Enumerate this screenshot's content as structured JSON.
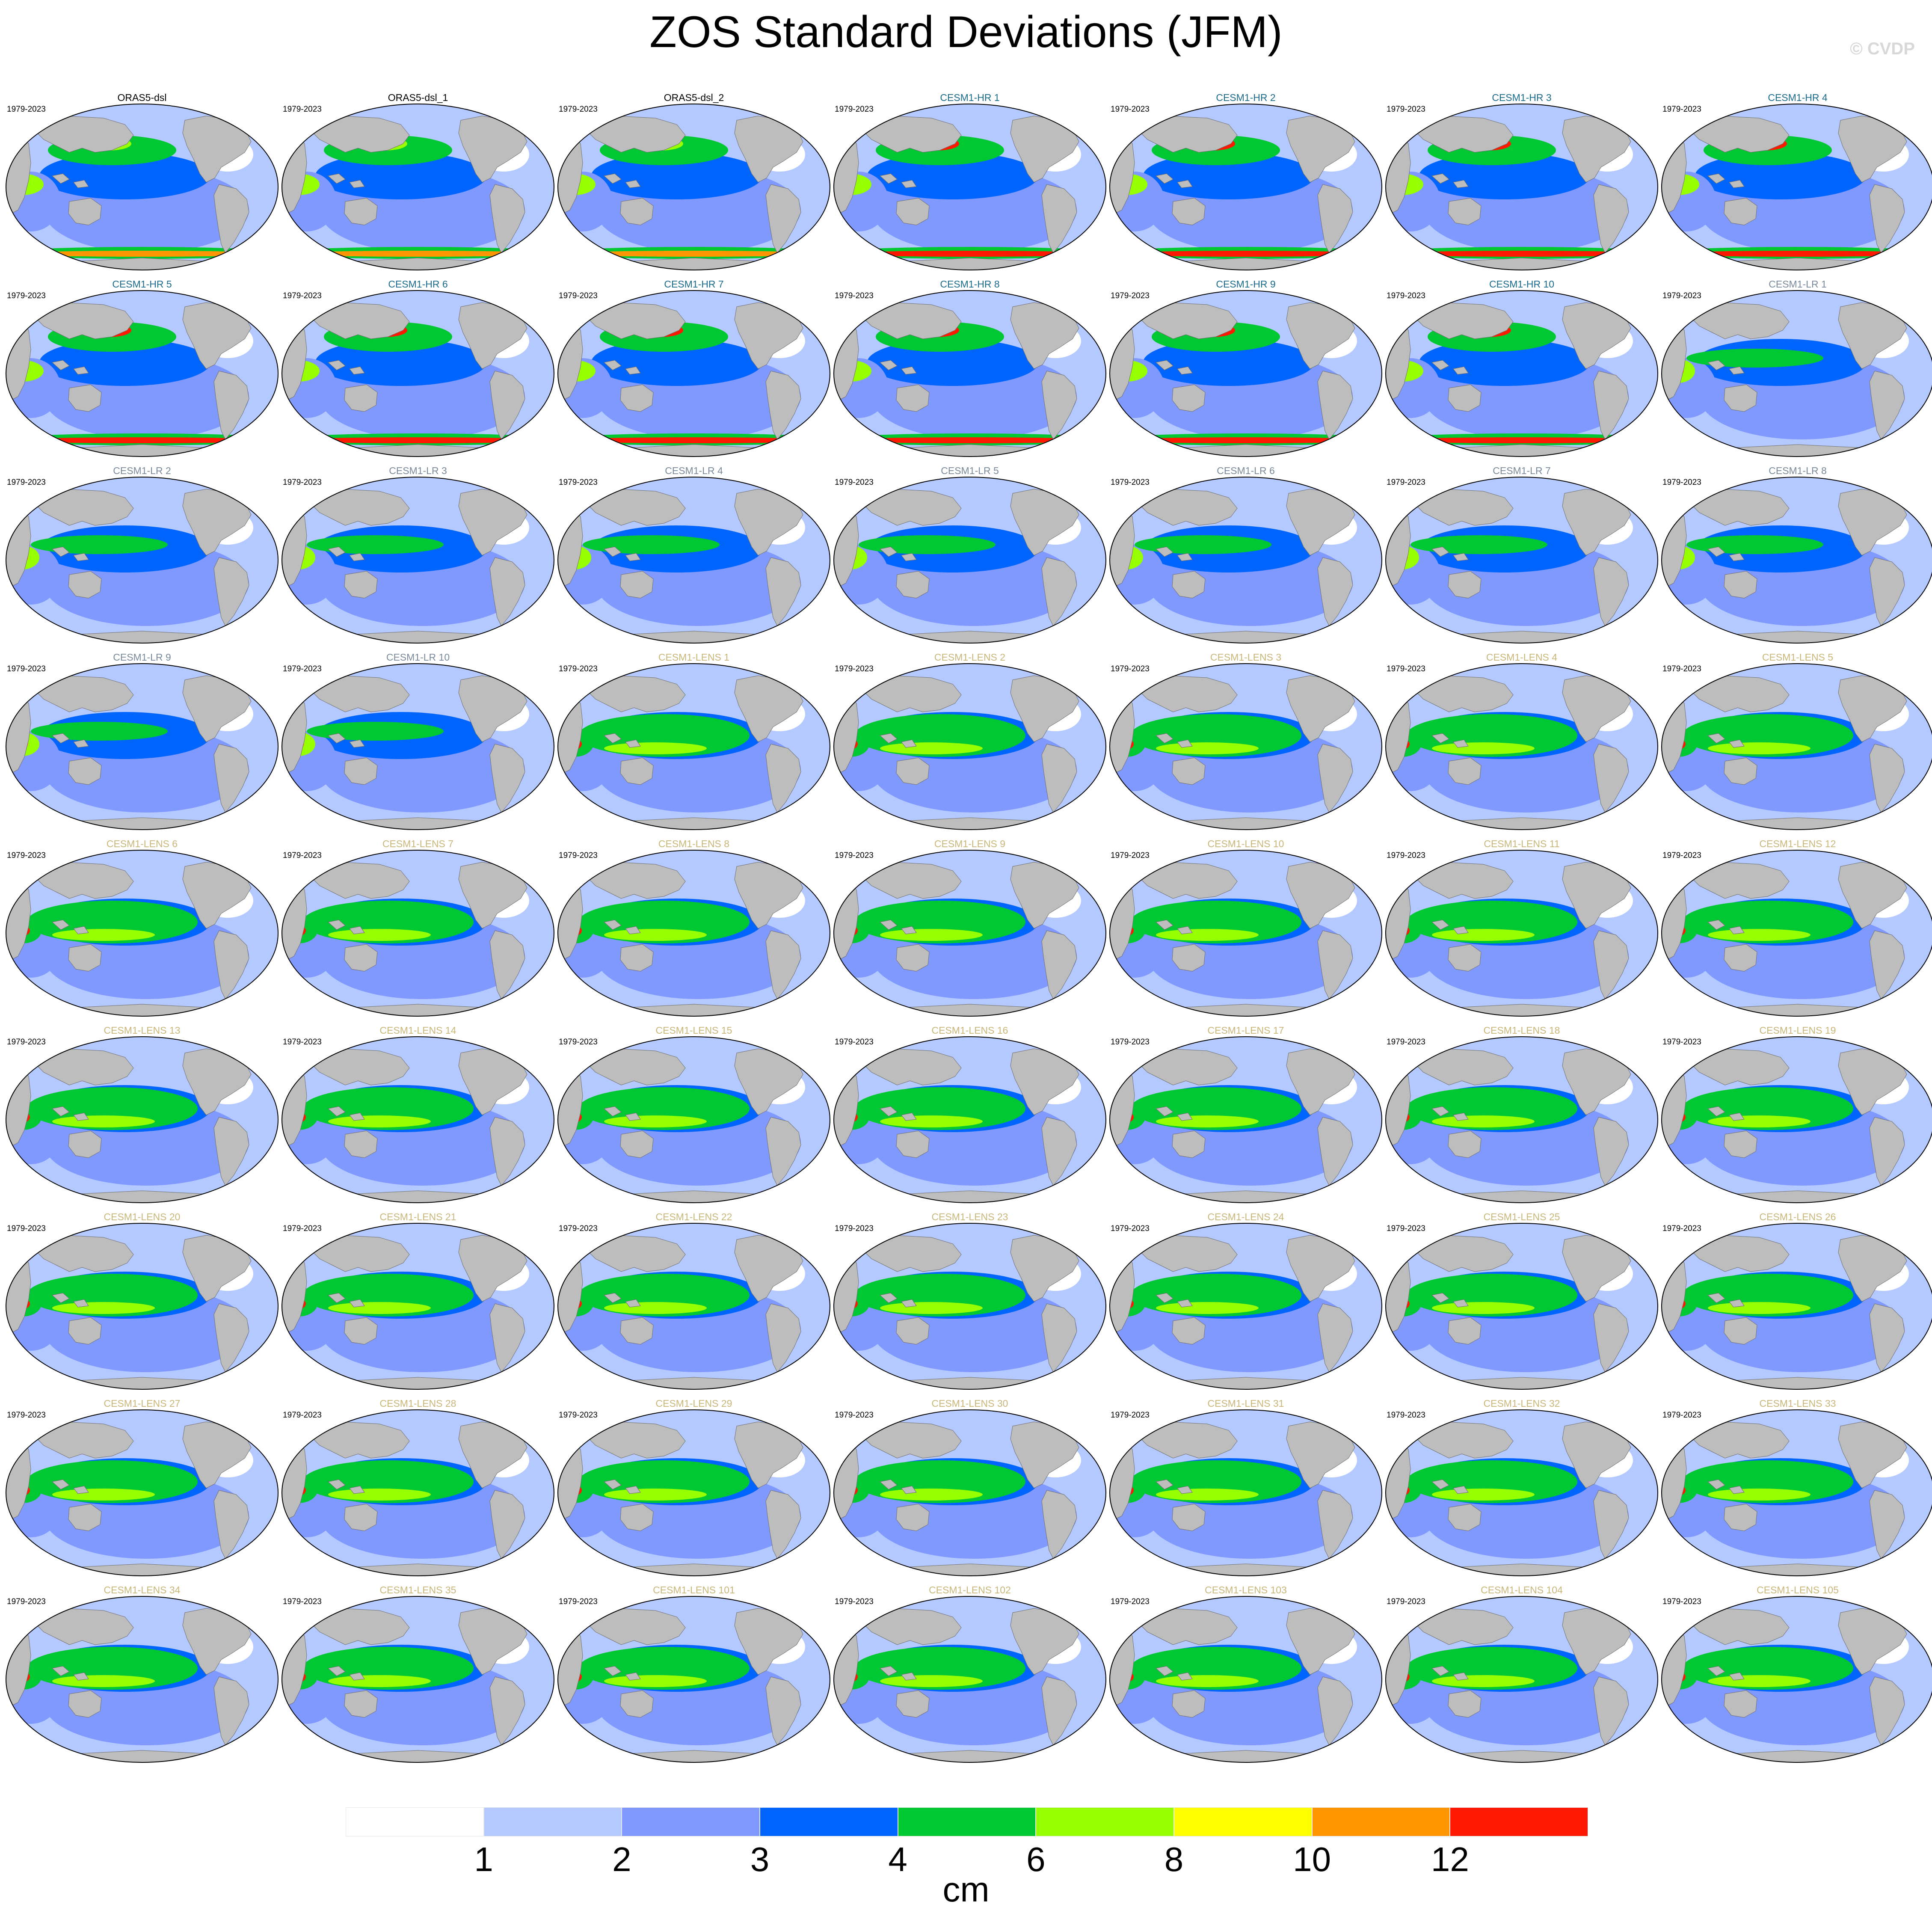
{
  "title": "ZOS Standard Deviations (JFM)",
  "watermark": "© CVDP",
  "period": "1979-2023",
  "colors": {
    "land": "#bdbdbd",
    "ocean_base": "#b4c9ff",
    "obs_name": "#000000",
    "hr_name": "#1a6b8c",
    "lr_name": "#7a8a9a",
    "lens_name": "#c9b77a"
  },
  "panels": [
    {
      "name": "ORAS5-dsl",
      "group": "obs"
    },
    {
      "name": "ORAS5-dsl_1",
      "group": "obs"
    },
    {
      "name": "ORAS5-dsl_2",
      "group": "obs"
    },
    {
      "name": "CESM1-HR 1",
      "group": "hr"
    },
    {
      "name": "CESM1-HR 2",
      "group": "hr"
    },
    {
      "name": "CESM1-HR 3",
      "group": "hr"
    },
    {
      "name": "CESM1-HR 4",
      "group": "hr"
    },
    {
      "name": "CESM1-HR 5",
      "group": "hr"
    },
    {
      "name": "CESM1-HR 6",
      "group": "hr"
    },
    {
      "name": "CESM1-HR 7",
      "group": "hr"
    },
    {
      "name": "CESM1-HR 8",
      "group": "hr"
    },
    {
      "name": "CESM1-HR 9",
      "group": "hr"
    },
    {
      "name": "CESM1-HR 10",
      "group": "hr"
    },
    {
      "name": "CESM1-LR 1",
      "group": "lr"
    },
    {
      "name": "CESM1-LR 2",
      "group": "lr"
    },
    {
      "name": "CESM1-LR 3",
      "group": "lr"
    },
    {
      "name": "CESM1-LR 4",
      "group": "lr"
    },
    {
      "name": "CESM1-LR 5",
      "group": "lr"
    },
    {
      "name": "CESM1-LR 6",
      "group": "lr"
    },
    {
      "name": "CESM1-LR 7",
      "group": "lr"
    },
    {
      "name": "CESM1-LR 8",
      "group": "lr"
    },
    {
      "name": "CESM1-LR 9",
      "group": "lr"
    },
    {
      "name": "CESM1-LR 10",
      "group": "lr"
    },
    {
      "name": "CESM1-LENS 1",
      "group": "lens"
    },
    {
      "name": "CESM1-LENS 2",
      "group": "lens"
    },
    {
      "name": "CESM1-LENS 3",
      "group": "lens"
    },
    {
      "name": "CESM1-LENS 4",
      "group": "lens"
    },
    {
      "name": "CESM1-LENS 5",
      "group": "lens"
    },
    {
      "name": "CESM1-LENS 6",
      "group": "lens"
    },
    {
      "name": "CESM1-LENS 7",
      "group": "lens"
    },
    {
      "name": "CESM1-LENS 8",
      "group": "lens"
    },
    {
      "name": "CESM1-LENS 9",
      "group": "lens"
    },
    {
      "name": "CESM1-LENS 10",
      "group": "lens"
    },
    {
      "name": "CESM1-LENS 11",
      "group": "lens"
    },
    {
      "name": "CESM1-LENS 12",
      "group": "lens"
    },
    {
      "name": "CESM1-LENS 13",
      "group": "lens"
    },
    {
      "name": "CESM1-LENS 14",
      "group": "lens"
    },
    {
      "name": "CESM1-LENS 15",
      "group": "lens"
    },
    {
      "name": "CESM1-LENS 16",
      "group": "lens"
    },
    {
      "name": "CESM1-LENS 17",
      "group": "lens"
    },
    {
      "name": "CESM1-LENS 18",
      "group": "lens"
    },
    {
      "name": "CESM1-LENS 19",
      "group": "lens"
    },
    {
      "name": "CESM1-LENS 20",
      "group": "lens"
    },
    {
      "name": "CESM1-LENS 21",
      "group": "lens"
    },
    {
      "name": "CESM1-LENS 22",
      "group": "lens"
    },
    {
      "name": "CESM1-LENS 23",
      "group": "lens"
    },
    {
      "name": "CESM1-LENS 24",
      "group": "lens"
    },
    {
      "name": "CESM1-LENS 25",
      "group": "lens"
    },
    {
      "name": "CESM1-LENS 26",
      "group": "lens"
    },
    {
      "name": "CESM1-LENS 27",
      "group": "lens"
    },
    {
      "name": "CESM1-LENS 28",
      "group": "lens"
    },
    {
      "name": "CESM1-LENS 29",
      "group": "lens"
    },
    {
      "name": "CESM1-LENS 30",
      "group": "lens"
    },
    {
      "name": "CESM1-LENS 31",
      "group": "lens"
    },
    {
      "name": "CESM1-LENS 32",
      "group": "lens"
    },
    {
      "name": "CESM1-LENS 33",
      "group": "lens"
    },
    {
      "name": "CESM1-LENS 34",
      "group": "lens"
    },
    {
      "name": "CESM1-LENS 35",
      "group": "lens"
    },
    {
      "name": "CESM1-LENS 101",
      "group": "lens"
    },
    {
      "name": "CESM1-LENS 102",
      "group": "lens"
    },
    {
      "name": "CESM1-LENS 103",
      "group": "lens"
    },
    {
      "name": "CESM1-LENS 104",
      "group": "lens"
    },
    {
      "name": "CESM1-LENS 105",
      "group": "lens"
    }
  ],
  "colorbar": {
    "units": "cm",
    "labels": [
      "1",
      "2",
      "3",
      "4",
      "6",
      "8",
      "10",
      "12"
    ],
    "bins": [
      {
        "color": "#ffffff"
      },
      {
        "color": "#b4c9ff"
      },
      {
        "color": "#8099ff"
      },
      {
        "color": "#0064ff"
      },
      {
        "color": "#00c832"
      },
      {
        "color": "#96ff00"
      },
      {
        "color": "#ffff00"
      },
      {
        "color": "#ff9600"
      },
      {
        "color": "#ff1900"
      }
    ]
  }
}
